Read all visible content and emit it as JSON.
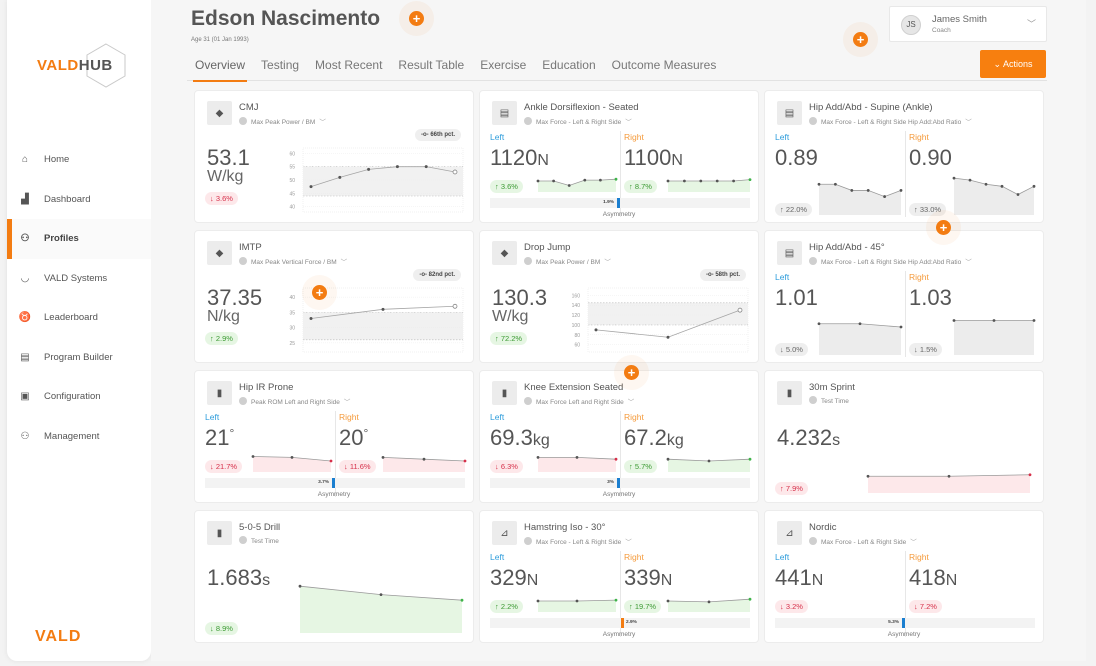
{
  "brand": {
    "logo_left": "VALD",
    "logo_right": "HUB",
    "footer": "VALD",
    "accent": "#f37c12"
  },
  "sidebar": {
    "items": [
      {
        "label": "Home",
        "icon": "home-icon",
        "glyph": "⌂"
      },
      {
        "label": "Dashboard",
        "icon": "dashboard-icon",
        "glyph": "▟"
      },
      {
        "label": "Profiles",
        "icon": "profiles-icon",
        "glyph": "⚇",
        "active": true
      },
      {
        "label": "VALD Systems",
        "icon": "vald-systems-icon",
        "glyph": "◡"
      },
      {
        "label": "Leaderboard",
        "icon": "medal-icon",
        "glyph": "♉"
      },
      {
        "label": "Program Builder",
        "icon": "program-builder-icon",
        "glyph": "▤"
      },
      {
        "label": "Configuration",
        "icon": "folder-icon",
        "glyph": "▣"
      },
      {
        "label": "Management",
        "icon": "management-icon",
        "glyph": "⚇"
      }
    ]
  },
  "profile": {
    "name": "Edson Nascimento",
    "age": "Age  31 (01 Jan 1993)"
  },
  "tabs": [
    "Overview",
    "Testing",
    "Most Recent",
    "Result Table",
    "Exercise",
    "Education",
    "Outcome Measures"
  ],
  "user": {
    "initials": "JS",
    "name": "James Smith",
    "role": "Coach"
  },
  "actions_label": "Actions",
  "cards": [
    {
      "title": "CMJ",
      "sub": "Max Peak Power / BM",
      "pct": "66th pct.",
      "value": "53.1",
      "unit": "W/kg",
      "change": "↓ 3.6%",
      "change_color": "red",
      "chart": {
        "yticks": [
          "60",
          "55",
          "50",
          "45",
          "40"
        ],
        "ymin": 38,
        "ymax": 62,
        "band": [
          44,
          55
        ],
        "values": [
          47.5,
          51,
          54,
          55,
          55,
          53
        ]
      }
    },
    {
      "title": "Ankle Dorsiflexion - Seated",
      "sub": "Max Force - Left & Right Side",
      "left_label": "Left",
      "right_label": "Right",
      "left_value": "1120",
      "left_unit": "N",
      "right_value": "1100",
      "right_unit": "N",
      "left_change": "↑ 3.6%",
      "right_change": "↑ 8.7%",
      "left_color": "green",
      "right_color": "green",
      "asym": "1.9%",
      "asym_side": "left",
      "asym_label": "Asymmetry"
    },
    {
      "title": "Hip Add/Abd - Supine (Ankle)",
      "sub": "Max Force - Left & Right Side Hip Add:Abd Ratio",
      "left_label": "Left",
      "right_label": "Right",
      "left_value": "0.89",
      "left_unit": "",
      "right_value": "0.90",
      "right_unit": "",
      "left_change": "↑ 22.0%",
      "right_change": "↑ 33.0%",
      "left_color": "grey",
      "right_color": "grey"
    },
    {
      "title": "IMTP",
      "sub": "Max Peak Vertical Force / BM",
      "pct": "82nd pct.",
      "value": "37.35",
      "unit": "N/kg",
      "change": "↑ 2.9%",
      "change_color": "green",
      "chart": {
        "yticks": [
          "40",
          "35",
          "30",
          "25"
        ],
        "ymin": 22,
        "ymax": 43,
        "band": [
          26,
          35
        ],
        "values": [
          33,
          36,
          37
        ]
      }
    },
    {
      "title": "Drop Jump",
      "sub": "Max Peak Power / BM",
      "pct": "58th pct.",
      "value": "130.3",
      "unit": "W/kg",
      "change": "↑ 72.2%",
      "change_color": "green",
      "chart": {
        "yticks": [
          "160",
          "140",
          "120",
          "100",
          "80",
          "60"
        ],
        "ymin": 45,
        "ymax": 175,
        "band": [
          100,
          145
        ],
        "values": [
          90,
          75,
          130
        ]
      }
    },
    {
      "title": "Hip Add/Abd - 45°",
      "sub": "Max Force - Left & Right Side Hip Add:Abd Ratio",
      "left_label": "Left",
      "right_label": "Right",
      "left_value": "1.01",
      "left_unit": "",
      "right_value": "1.03",
      "right_unit": "",
      "left_change": "↓ 5.0%",
      "right_change": "↓ 1.5%",
      "left_color": "grey",
      "right_color": "grey"
    },
    {
      "title": "Hip IR Prone",
      "sub": "Peak ROM Left and Right Side",
      "left_label": "Left",
      "right_label": "Right",
      "left_value": "21",
      "left_unit": "°",
      "right_value": "20",
      "right_unit": "°",
      "left_change": "↓ 21.7%",
      "right_change": "↓ 11.6%",
      "left_color": "red",
      "right_color": "red",
      "asym": "3.7%",
      "asym_side": "left",
      "asym_label": "Asymmetry"
    },
    {
      "title": "Knee Extension Seated",
      "sub": "Max Force Left and Right Side",
      "left_label": "Left",
      "right_label": "Right",
      "left_value": "69.3",
      "left_unit": "kg",
      "right_value": "67.2",
      "right_unit": "kg",
      "left_change": "↓ 6.3%",
      "right_change": "↑ 5.7%",
      "left_color": "red",
      "right_color": "green",
      "asym": "3%",
      "asym_side": "left",
      "asym_label": "Asymmetry"
    },
    {
      "title": "30m Sprint",
      "sub": "Test Time",
      "value": "4.232",
      "unit": "s",
      "change": "↑ 7.9%",
      "change_color": "red"
    },
    {
      "title": "5-0-5 Drill",
      "sub": "Test Time",
      "value": "1.683",
      "unit": "s",
      "change": "↓ 8.9%",
      "change_color": "green"
    },
    {
      "title": "Hamstring Iso - 30°",
      "sub": "Max Force - Left & Right Side",
      "left_label": "Left",
      "right_label": "Right",
      "left_value": "329",
      "left_unit": "N",
      "right_value": "339",
      "right_unit": "N",
      "left_change": "↑ 2.2%",
      "right_change": "↑ 19.7%",
      "left_color": "green",
      "right_color": "green",
      "asym": "2.9%",
      "asym_side": "right",
      "asym_label": "Asymmetry"
    },
    {
      "title": "Nordic",
      "sub": "Max Force - Left & Right Side",
      "left_label": "Left",
      "right_label": "Right",
      "left_value": "441",
      "left_unit": "N",
      "right_value": "418",
      "right_unit": "N",
      "left_change": "↓ 3.2%",
      "right_change": "↓ 7.2%",
      "left_color": "red",
      "right_color": "red",
      "asym": "5.3%",
      "asym_side": "left",
      "asym_label": "Asymmetry"
    }
  ]
}
